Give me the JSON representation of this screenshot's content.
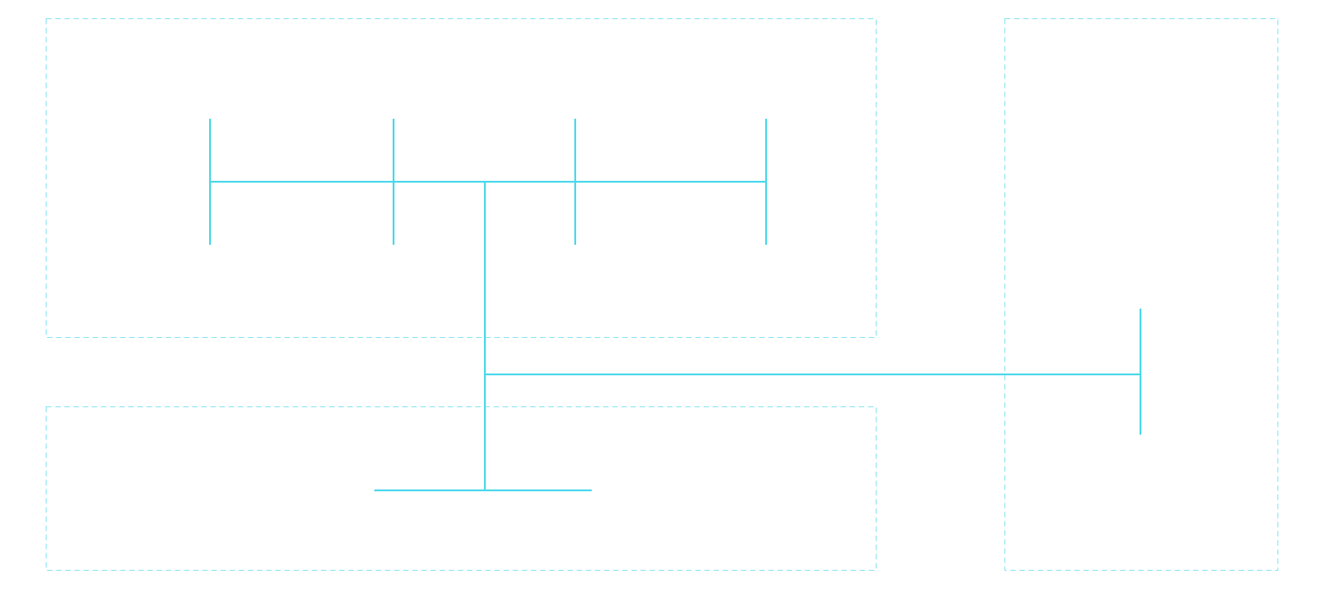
{
  "diagram": {
    "colors": {
      "line": "#4dd9ec",
      "region_border": "#8ee6f2",
      "background": "#ffffff"
    },
    "regions": [
      {
        "id": "region-top-left",
        "style": "dashed"
      },
      {
        "id": "region-bottom-left",
        "style": "dashed"
      },
      {
        "id": "region-right",
        "style": "dashed"
      }
    ],
    "connectors": [
      {
        "id": "bus-top",
        "kind": "horizontal-bus"
      },
      {
        "id": "tick-1",
        "kind": "vertical-tick"
      },
      {
        "id": "tick-2",
        "kind": "vertical-tick"
      },
      {
        "id": "tick-3",
        "kind": "vertical-tick"
      },
      {
        "id": "tick-4",
        "kind": "vertical-tick"
      },
      {
        "id": "trunk",
        "kind": "vertical-trunk"
      },
      {
        "id": "branch-right",
        "kind": "horizontal-branch"
      },
      {
        "id": "tick-right",
        "kind": "vertical-tick"
      },
      {
        "id": "bus-bottom",
        "kind": "horizontal-bus"
      }
    ]
  }
}
